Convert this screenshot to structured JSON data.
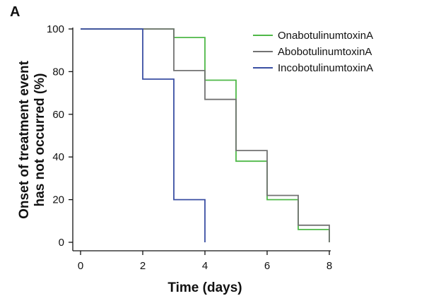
{
  "panel_label": "A",
  "chart_data": {
    "type": "line",
    "xlabel": "Time (days)",
    "ylabel_lines": [
      "Onset of treatment event",
      "has not occurred (%)"
    ],
    "xlim": [
      0,
      8
    ],
    "ylim": [
      0,
      100
    ],
    "x_ticks": [
      0,
      2,
      4,
      6,
      8
    ],
    "y_ticks": [
      0,
      20,
      40,
      60,
      80,
      100
    ],
    "grid": false,
    "legend_position": "top-right",
    "step": true,
    "series": [
      {
        "name": "OnabotulinumtoxinA",
        "color": "#4fb848",
        "points": [
          [
            0,
            100
          ],
          [
            3,
            100
          ],
          [
            3,
            96
          ],
          [
            4,
            96
          ],
          [
            4,
            76
          ],
          [
            5,
            76
          ],
          [
            5,
            38
          ],
          [
            6,
            38
          ],
          [
            6,
            20
          ],
          [
            7,
            20
          ],
          [
            7,
            6
          ],
          [
            8,
            6
          ],
          [
            8,
            0
          ]
        ]
      },
      {
        "name": "AbobotulinumtoxinA",
        "color": "#737373",
        "points": [
          [
            0,
            100
          ],
          [
            3,
            100
          ],
          [
            3,
            80.5
          ],
          [
            4,
            80.5
          ],
          [
            4,
            67
          ],
          [
            5,
            67
          ],
          [
            5,
            43
          ],
          [
            6,
            43
          ],
          [
            6,
            22
          ],
          [
            7,
            22
          ],
          [
            7,
            8
          ],
          [
            8,
            8
          ],
          [
            8,
            0
          ]
        ]
      },
      {
        "name": "IncobotulinumtoxinA",
        "color": "#3a4fa3",
        "points": [
          [
            0,
            100
          ],
          [
            2,
            100
          ],
          [
            2,
            76.5
          ],
          [
            3,
            76.5
          ],
          [
            3,
            20
          ],
          [
            4,
            20
          ],
          [
            4,
            0
          ]
        ]
      }
    ]
  }
}
